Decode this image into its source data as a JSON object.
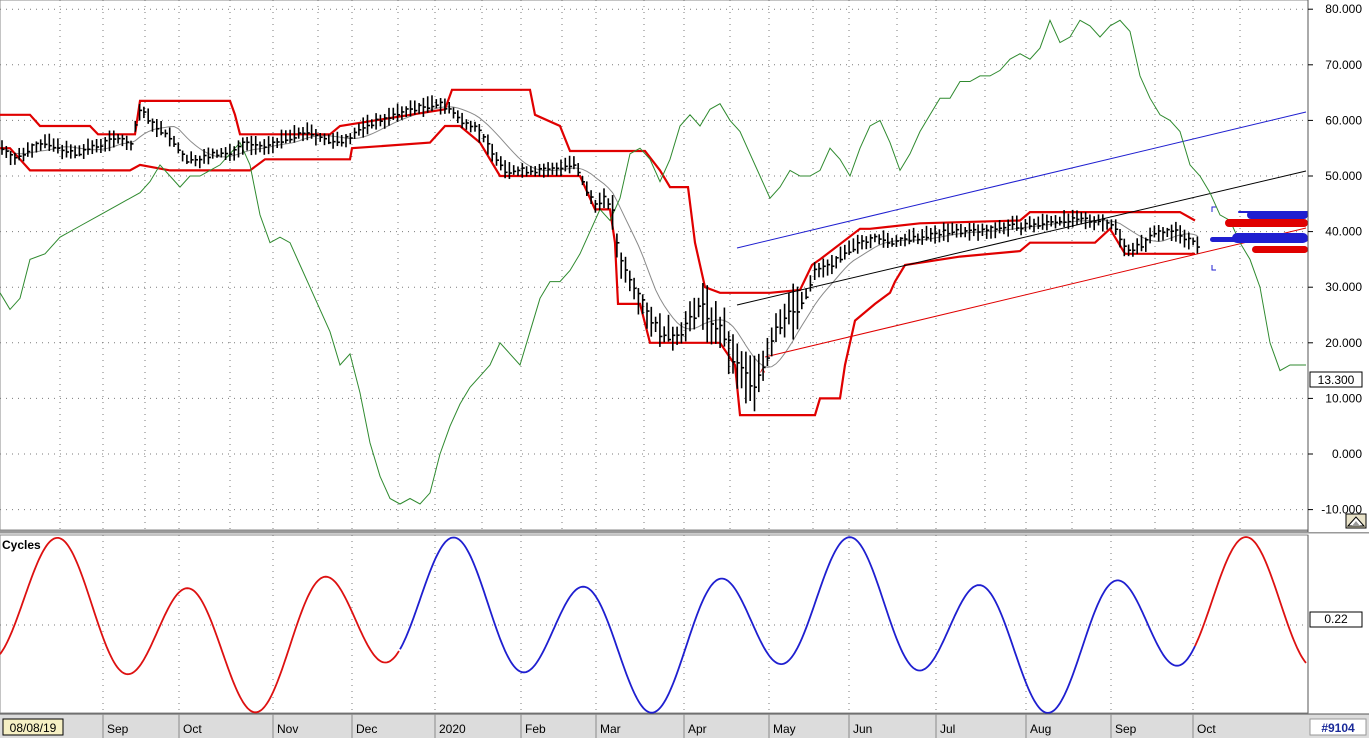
{
  "chart_data": [
    {
      "type": "ohlc",
      "panel": "price",
      "x_start_label": "08/08/19",
      "x_month_labels": [
        "Sep",
        "Oct",
        "Nov",
        "Dec",
        "2020",
        "Feb",
        "Mar",
        "Apr",
        "May",
        "Jun",
        "Jul",
        "Aug",
        "Sep",
        "Oct"
      ],
      "y_ticks": [
        "80.000",
        "70.000",
        "60.000",
        "50.000",
        "40.000",
        "30.000",
        "20.000",
        "10.000",
        "0.000",
        "-10.000"
      ],
      "ylim": [
        -12,
        81
      ],
      "last_value_badge": "13.300",
      "grid": "dotted",
      "series": [
        {
          "kind": "price_bars",
          "color": "#000000",
          "anchors": [
            [
              0,
              55.5
            ],
            [
              15,
              53
            ],
            [
              30,
              55
            ],
            [
              45,
              56
            ],
            [
              60,
              55
            ],
            [
              75,
              54
            ],
            [
              90,
              55
            ],
            [
              105,
              56
            ],
            [
              120,
              57
            ],
            [
              130,
              55
            ],
            [
              140,
              62
            ],
            [
              155,
              59
            ],
            [
              170,
              57
            ],
            [
              185,
              53
            ],
            [
              200,
              53
            ],
            [
              215,
              54
            ],
            [
              230,
              54
            ],
            [
              245,
              56
            ],
            [
              260,
              55
            ],
            [
              275,
              56
            ],
            [
              290,
              57
            ],
            [
              305,
              58
            ],
            [
              320,
              57
            ],
            [
              335,
              56
            ],
            [
              350,
              57
            ],
            [
              365,
              59
            ],
            [
              380,
              60
            ],
            [
              395,
              61
            ],
            [
              410,
              62
            ],
            [
              425,
              62.5
            ],
            [
              440,
              63
            ],
            [
              450,
              62
            ],
            [
              460,
              60
            ],
            [
              475,
              59
            ],
            [
              490,
              55
            ],
            [
              505,
              51
            ],
            [
              520,
              51
            ],
            [
              535,
              51
            ],
            [
              550,
              51
            ],
            [
              565,
              52
            ],
            [
              575,
              52
            ],
            [
              585,
              48
            ],
            [
              595,
              45
            ],
            [
              605,
              46
            ],
            [
              612,
              44
            ],
            [
              618,
              36
            ],
            [
              625,
              33
            ],
            [
              635,
              30
            ],
            [
              645,
              26
            ],
            [
              660,
              22
            ],
            [
              675,
              21
            ],
            [
              690,
              24
            ],
            [
              700,
              27
            ],
            [
              715,
              23
            ],
            [
              725,
              21
            ],
            [
              735,
              16
            ],
            [
              745,
              14
            ],
            [
              755,
              13
            ],
            [
              765,
              17
            ],
            [
              775,
              22
            ],
            [
              785,
              25
            ],
            [
              795,
              26
            ],
            [
              805,
              28
            ],
            [
              815,
              33
            ],
            [
              830,
              34
            ],
            [
              845,
              36
            ],
            [
              860,
              38
            ],
            [
              875,
              39
            ],
            [
              890,
              38
            ],
            [
              905,
              38.5
            ],
            [
              920,
              39
            ],
            [
              935,
              39.5
            ],
            [
              950,
              40
            ],
            [
              965,
              40
            ],
            [
              980,
              40
            ],
            [
              995,
              40.5
            ],
            [
              1010,
              41
            ],
            [
              1025,
              41
            ],
            [
              1040,
              41.5
            ],
            [
              1055,
              42
            ],
            [
              1070,
              42
            ],
            [
              1085,
              42
            ],
            [
              1100,
              42
            ],
            [
              1115,
              41
            ],
            [
              1125,
              37
            ],
            [
              1135,
              37
            ],
            [
              1145,
              38
            ],
            [
              1155,
              40
            ],
            [
              1165,
              40
            ],
            [
              1175,
              40
            ],
            [
              1185,
              39
            ],
            [
              1195,
              38
            ],
            [
              1200,
              37
            ]
          ]
        },
        {
          "kind": "green_oscillator_line",
          "color": "#2f8a2f",
          "points": [
            [
              0,
              29
            ],
            [
              10,
              26
            ],
            [
              20,
              28
            ],
            [
              30,
              35
            ],
            [
              45,
              36
            ],
            [
              60,
              39
            ],
            [
              80,
              41
            ],
            [
              100,
              43
            ],
            [
              120,
              45
            ],
            [
              140,
              47
            ],
            [
              150,
              49
            ],
            [
              160,
              52
            ],
            [
              170,
              50
            ],
            [
              180,
              48
            ],
            [
              190,
              50
            ],
            [
              200,
              50
            ],
            [
              210,
              51
            ],
            [
              220,
              52
            ],
            [
              230,
              54
            ],
            [
              240,
              56
            ],
            [
              250,
              52
            ],
            [
              260,
              43
            ],
            [
              270,
              38
            ],
            [
              280,
              39
            ],
            [
              290,
              38
            ],
            [
              300,
              34
            ],
            [
              310,
              30
            ],
            [
              320,
              26
            ],
            [
              330,
              22
            ],
            [
              340,
              16
            ],
            [
              350,
              18
            ],
            [
              360,
              11
            ],
            [
              370,
              2
            ],
            [
              380,
              -4
            ],
            [
              390,
              -8
            ],
            [
              400,
              -9
            ],
            [
              410,
              -8
            ],
            [
              420,
              -9
            ],
            [
              430,
              -7
            ],
            [
              440,
              0
            ],
            [
              450,
              5
            ],
            [
              460,
              9
            ],
            [
              470,
              12
            ],
            [
              480,
              14
            ],
            [
              490,
              16
            ],
            [
              500,
              20
            ],
            [
              510,
              18
            ],
            [
              520,
              16
            ],
            [
              530,
              22
            ],
            [
              540,
              28
            ],
            [
              550,
              31
            ],
            [
              560,
              31
            ],
            [
              570,
              33
            ],
            [
              580,
              36
            ],
            [
              590,
              40
            ],
            [
              600,
              44
            ],
            [
              610,
              42
            ],
            [
              620,
              46
            ],
            [
              630,
              54
            ],
            [
              640,
              55
            ],
            [
              650,
              53
            ],
            [
              660,
              49
            ],
            [
              670,
              53
            ],
            [
              680,
              59
            ],
            [
              690,
              61
            ],
            [
              700,
              59
            ],
            [
              710,
              62
            ],
            [
              720,
              63
            ],
            [
              730,
              60
            ],
            [
              740,
              58
            ],
            [
              750,
              54
            ],
            [
              760,
              50
            ],
            [
              770,
              46
            ],
            [
              780,
              48
            ],
            [
              790,
              51
            ],
            [
              800,
              50
            ],
            [
              810,
              50
            ],
            [
              820,
              51
            ],
            [
              830,
              55
            ],
            [
              840,
              53
            ],
            [
              850,
              50
            ],
            [
              860,
              55
            ],
            [
              870,
              59
            ],
            [
              880,
              60
            ],
            [
              890,
              56
            ],
            [
              900,
              51
            ],
            [
              910,
              54
            ],
            [
              920,
              58
            ],
            [
              930,
              61
            ],
            [
              940,
              64
            ],
            [
              950,
              64
            ],
            [
              960,
              67
            ],
            [
              970,
              67
            ],
            [
              980,
              68
            ],
            [
              990,
              68
            ],
            [
              1000,
              69
            ],
            [
              1010,
              71
            ],
            [
              1020,
              72
            ],
            [
              1030,
              71
            ],
            [
              1040,
              73
            ],
            [
              1050,
              78
            ],
            [
              1060,
              74
            ],
            [
              1070,
              75
            ],
            [
              1080,
              78
            ],
            [
              1090,
              77
            ],
            [
              1100,
              75
            ],
            [
              1110,
              77
            ],
            [
              1120,
              78
            ],
            [
              1130,
              76
            ],
            [
              1140,
              68
            ],
            [
              1150,
              64
            ],
            [
              1160,
              61
            ],
            [
              1170,
              60
            ],
            [
              1180,
              58
            ],
            [
              1190,
              52
            ],
            [
              1200,
              50
            ],
            [
              1210,
              47
            ],
            [
              1220,
              43
            ],
            [
              1230,
              42
            ],
            [
              1240,
              38
            ],
            [
              1250,
              35
            ],
            [
              1260,
              30
            ],
            [
              1270,
              20
            ],
            [
              1280,
              15
            ],
            [
              1290,
              16
            ],
            [
              1300,
              16
            ],
            [
              1306,
              16
            ]
          ]
        }
      ]
    },
    {
      "type": "line",
      "panel": "cycles",
      "title": "Cycles",
      "value_badge": "0.22",
      "segments": [
        {
          "color": "#dd1111",
          "range": [
            0,
            400
          ]
        },
        {
          "color": "#1f1fd0",
          "range": [
            400,
            1195
          ]
        },
        {
          "color": "#dd1111",
          "range": [
            1195,
            1306
          ]
        }
      ]
    }
  ],
  "footer": {
    "date_badge": "08/08/19",
    "id_badge": "#9104"
  }
}
